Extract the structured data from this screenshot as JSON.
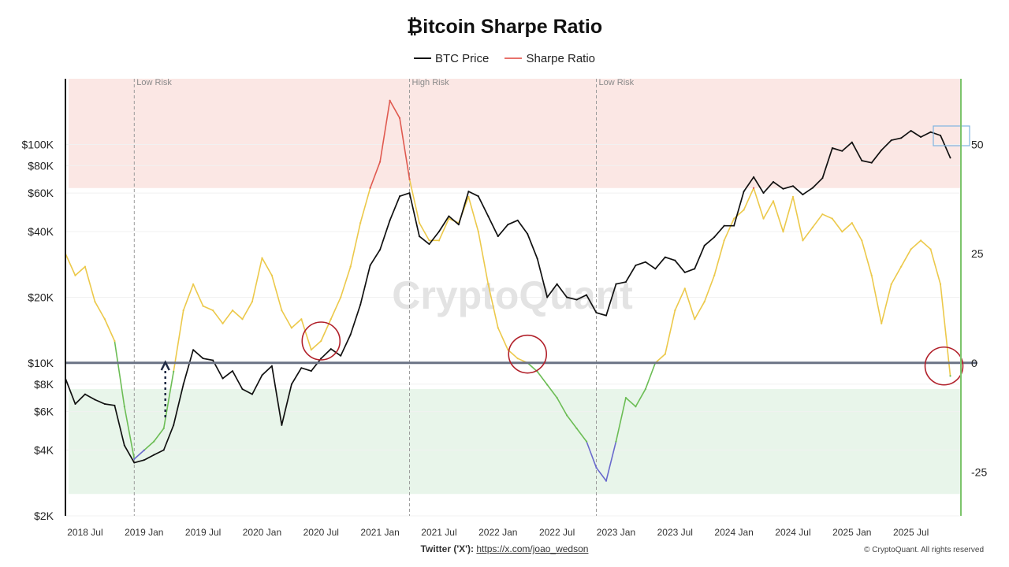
{
  "title": "₿itcoin Sharpe Ratio",
  "legend": [
    {
      "label": "BTC Price",
      "color": "#111111"
    },
    {
      "label": "Sharpe Ratio",
      "color": "#e8726b"
    }
  ],
  "watermark": "CryptoQuant",
  "footer": {
    "twitter_label": "Twitter ('X'):",
    "twitter_link": "https://x.com/joao_wedson",
    "copyright": "© CryptoQuant. All rights reserved"
  },
  "colors": {
    "high_zone": "#fbe7e4",
    "low_zone": "#e8f5ea",
    "sharpe_neutral": "#ecc94b",
    "sharpe_high": "#e05a50",
    "sharpe_low": "#6cbd55",
    "sharpe_extreme_low": "#6a6acd",
    "zero_line": "#6b7385",
    "circle": "#b1202a",
    "right_axis": "#7cc46b"
  },
  "chart_data": {
    "type": "line",
    "x_range": [
      "2018-05",
      "2025-12"
    ],
    "x_ticks": [
      "2018 Jul",
      "2019 Jan",
      "2019 Jul",
      "2020 Jan",
      "2020 Jul",
      "2021 Jan",
      "2021 Jul",
      "2022 Jan",
      "2022 Jul",
      "2023 Jan",
      "2023 Jul",
      "2024 Jan",
      "2024 Jul",
      "2025 Jan",
      "2025 Jul"
    ],
    "left_axis": {
      "scale": "log",
      "range": [
        2000,
        200000
      ],
      "ticks": [
        {
          "value": 2000,
          "label": "$2K"
        },
        {
          "value": 4000,
          "label": "$4K"
        },
        {
          "value": 6000,
          "label": "$6K"
        },
        {
          "value": 8000,
          "label": "$8K"
        },
        {
          "value": 10000,
          "label": "$10K"
        },
        {
          "value": 20000,
          "label": "$20K"
        },
        {
          "value": 40000,
          "label": "$40K"
        },
        {
          "value": 60000,
          "label": "$60K"
        },
        {
          "value": 80000,
          "label": "$80K"
        },
        {
          "value": 100000,
          "label": "$100K"
        }
      ]
    },
    "right_axis": {
      "range": [
        -35,
        65
      ],
      "ticks": [
        {
          "value": 50,
          "label": "50"
        },
        {
          "value": 25,
          "label": "25"
        },
        {
          "value": 0,
          "label": "0"
        },
        {
          "value": -25,
          "label": "-25"
        }
      ]
    },
    "zones": {
      "high_risk_min": 40,
      "low_risk_max": -6,
      "low_risk_min": -30
    },
    "zero_line": 0,
    "annotations": [
      {
        "date": "2018-12",
        "label": "Low Risk"
      },
      {
        "date": "2021-04",
        "label": "High Risk"
      },
      {
        "date": "2022-11",
        "label": "Low Risk"
      }
    ],
    "series": [
      {
        "name": "BTC Price",
        "axis": "left",
        "points": [
          [
            "2018-05",
            8500
          ],
          [
            "2018-06",
            6500
          ],
          [
            "2018-07",
            7200
          ],
          [
            "2018-08",
            6800
          ],
          [
            "2018-09",
            6500
          ],
          [
            "2018-10",
            6400
          ],
          [
            "2018-11",
            4200
          ],
          [
            "2018-12",
            3500
          ],
          [
            "2019-01",
            3600
          ],
          [
            "2019-02",
            3800
          ],
          [
            "2019-03",
            4000
          ],
          [
            "2019-04",
            5200
          ],
          [
            "2019-05",
            8000
          ],
          [
            "2019-06",
            11500
          ],
          [
            "2019-07",
            10500
          ],
          [
            "2019-08",
            10300
          ],
          [
            "2019-09",
            8500
          ],
          [
            "2019-10",
            9200
          ],
          [
            "2019-11",
            7600
          ],
          [
            "2019-12",
            7200
          ],
          [
            "2020-01",
            8800
          ],
          [
            "2020-02",
            9700
          ],
          [
            "2020-03",
            5200
          ],
          [
            "2020-04",
            8000
          ],
          [
            "2020-05",
            9500
          ],
          [
            "2020-06",
            9200
          ],
          [
            "2020-07",
            10500
          ],
          [
            "2020-08",
            11600
          ],
          [
            "2020-09",
            10800
          ],
          [
            "2020-10",
            13500
          ],
          [
            "2020-11",
            18500
          ],
          [
            "2020-12",
            28000
          ],
          [
            "2021-01",
            33000
          ],
          [
            "2021-02",
            45000
          ],
          [
            "2021-03",
            58000
          ],
          [
            "2021-04",
            60000
          ],
          [
            "2021-05",
            38000
          ],
          [
            "2021-06",
            35000
          ],
          [
            "2021-07",
            40000
          ],
          [
            "2021-08",
            47000
          ],
          [
            "2021-09",
            43000
          ],
          [
            "2021-10",
            61000
          ],
          [
            "2021-11",
            58000
          ],
          [
            "2021-12",
            47000
          ],
          [
            "2022-01",
            38000
          ],
          [
            "2022-02",
            43000
          ],
          [
            "2022-03",
            45000
          ],
          [
            "2022-04",
            39000
          ],
          [
            "2022-05",
            30000
          ],
          [
            "2022-06",
            20000
          ],
          [
            "2022-07",
            23000
          ],
          [
            "2022-08",
            20000
          ],
          [
            "2022-09",
            19500
          ],
          [
            "2022-10",
            20500
          ],
          [
            "2022-11",
            17000
          ],
          [
            "2022-12",
            16500
          ],
          [
            "2023-01",
            23000
          ],
          [
            "2023-02",
            23500
          ],
          [
            "2023-03",
            28000
          ],
          [
            "2023-04",
            29000
          ],
          [
            "2023-05",
            27000
          ],
          [
            "2023-06",
            30500
          ],
          [
            "2023-07",
            29500
          ],
          [
            "2023-08",
            26000
          ],
          [
            "2023-09",
            27000
          ],
          [
            "2023-10",
            34500
          ],
          [
            "2023-11",
            37700
          ],
          [
            "2023-12",
            42500
          ],
          [
            "2024-01",
            42500
          ],
          [
            "2024-02",
            61000
          ],
          [
            "2024-03",
            71000
          ],
          [
            "2024-04",
            60000
          ],
          [
            "2024-05",
            67500
          ],
          [
            "2024-06",
            62700
          ],
          [
            "2024-07",
            64600
          ],
          [
            "2024-08",
            59000
          ],
          [
            "2024-09",
            63300
          ],
          [
            "2024-10",
            70200
          ],
          [
            "2024-11",
            96400
          ],
          [
            "2024-12",
            93400
          ],
          [
            "2025-01",
            102400
          ],
          [
            "2025-02",
            84400
          ],
          [
            "2025-03",
            82500
          ],
          [
            "2025-04",
            94200
          ],
          [
            "2025-05",
            104600
          ],
          [
            "2025-06",
            107100
          ],
          [
            "2025-07",
            115700
          ],
          [
            "2025-08",
            108200
          ],
          [
            "2025-09",
            114000
          ],
          [
            "2025-10",
            110000
          ],
          [
            "2025-11",
            87000
          ]
        ]
      },
      {
        "name": "Sharpe Ratio",
        "axis": "right",
        "points": [
          [
            "2018-05",
            25
          ],
          [
            "2018-06",
            20
          ],
          [
            "2018-07",
            22
          ],
          [
            "2018-08",
            14
          ],
          [
            "2018-09",
            10
          ],
          [
            "2018-10",
            5
          ],
          [
            "2018-11",
            -10
          ],
          [
            "2018-12",
            -22
          ],
          [
            "2019-01",
            -20
          ],
          [
            "2019-02",
            -18
          ],
          [
            "2019-03",
            -15
          ],
          [
            "2019-04",
            -2
          ],
          [
            "2019-05",
            12
          ],
          [
            "2019-06",
            18
          ],
          [
            "2019-07",
            13
          ],
          [
            "2019-08",
            12
          ],
          [
            "2019-09",
            9
          ],
          [
            "2019-10",
            12
          ],
          [
            "2019-11",
            10
          ],
          [
            "2019-12",
            14
          ],
          [
            "2020-01",
            24
          ],
          [
            "2020-02",
            20
          ],
          [
            "2020-03",
            12
          ],
          [
            "2020-04",
            8
          ],
          [
            "2020-05",
            10
          ],
          [
            "2020-06",
            3
          ],
          [
            "2020-07",
            5
          ],
          [
            "2020-08",
            10
          ],
          [
            "2020-09",
            15
          ],
          [
            "2020-10",
            22
          ],
          [
            "2020-11",
            32
          ],
          [
            "2020-12",
            40
          ],
          [
            "2021-01",
            46
          ],
          [
            "2021-02",
            60
          ],
          [
            "2021-03",
            56
          ],
          [
            "2021-04",
            42
          ],
          [
            "2021-05",
            32
          ],
          [
            "2021-06",
            28
          ],
          [
            "2021-07",
            28
          ],
          [
            "2021-08",
            33
          ],
          [
            "2021-09",
            32
          ],
          [
            "2021-10",
            38
          ],
          [
            "2021-11",
            30
          ],
          [
            "2021-12",
            18
          ],
          [
            "2022-01",
            8
          ],
          [
            "2022-02",
            3
          ],
          [
            "2022-03",
            1
          ],
          [
            "2022-04",
            0
          ],
          [
            "2022-05",
            -2
          ],
          [
            "2022-06",
            -5
          ],
          [
            "2022-07",
            -8
          ],
          [
            "2022-08",
            -12
          ],
          [
            "2022-09",
            -15
          ],
          [
            "2022-10",
            -18
          ],
          [
            "2022-11",
            -24
          ],
          [
            "2022-12",
            -27
          ],
          [
            "2023-01",
            -18
          ],
          [
            "2023-02",
            -8
          ],
          [
            "2023-03",
            -10
          ],
          [
            "2023-04",
            -6
          ],
          [
            "2023-05",
            0
          ],
          [
            "2023-06",
            2
          ],
          [
            "2023-07",
            12
          ],
          [
            "2023-08",
            17
          ],
          [
            "2023-09",
            10
          ],
          [
            "2023-10",
            14
          ],
          [
            "2023-11",
            20
          ],
          [
            "2023-12",
            28
          ],
          [
            "2024-01",
            33
          ],
          [
            "2024-02",
            35
          ],
          [
            "2024-03",
            40
          ],
          [
            "2024-04",
            33
          ],
          [
            "2024-05",
            37
          ],
          [
            "2024-06",
            30
          ],
          [
            "2024-07",
            38
          ],
          [
            "2024-08",
            28
          ],
          [
            "2024-09",
            31
          ],
          [
            "2024-10",
            34
          ],
          [
            "2024-11",
            33
          ],
          [
            "2024-12",
            30
          ],
          [
            "2025-01",
            32
          ],
          [
            "2025-02",
            28
          ],
          [
            "2025-03",
            20
          ],
          [
            "2025-04",
            9
          ],
          [
            "2025-05",
            18
          ],
          [
            "2025-06",
            22
          ],
          [
            "2025-07",
            26
          ],
          [
            "2025-08",
            28
          ],
          [
            "2025-09",
            26
          ],
          [
            "2025-10",
            18
          ],
          [
            "2025-11",
            -3
          ]
        ]
      }
    ]
  }
}
